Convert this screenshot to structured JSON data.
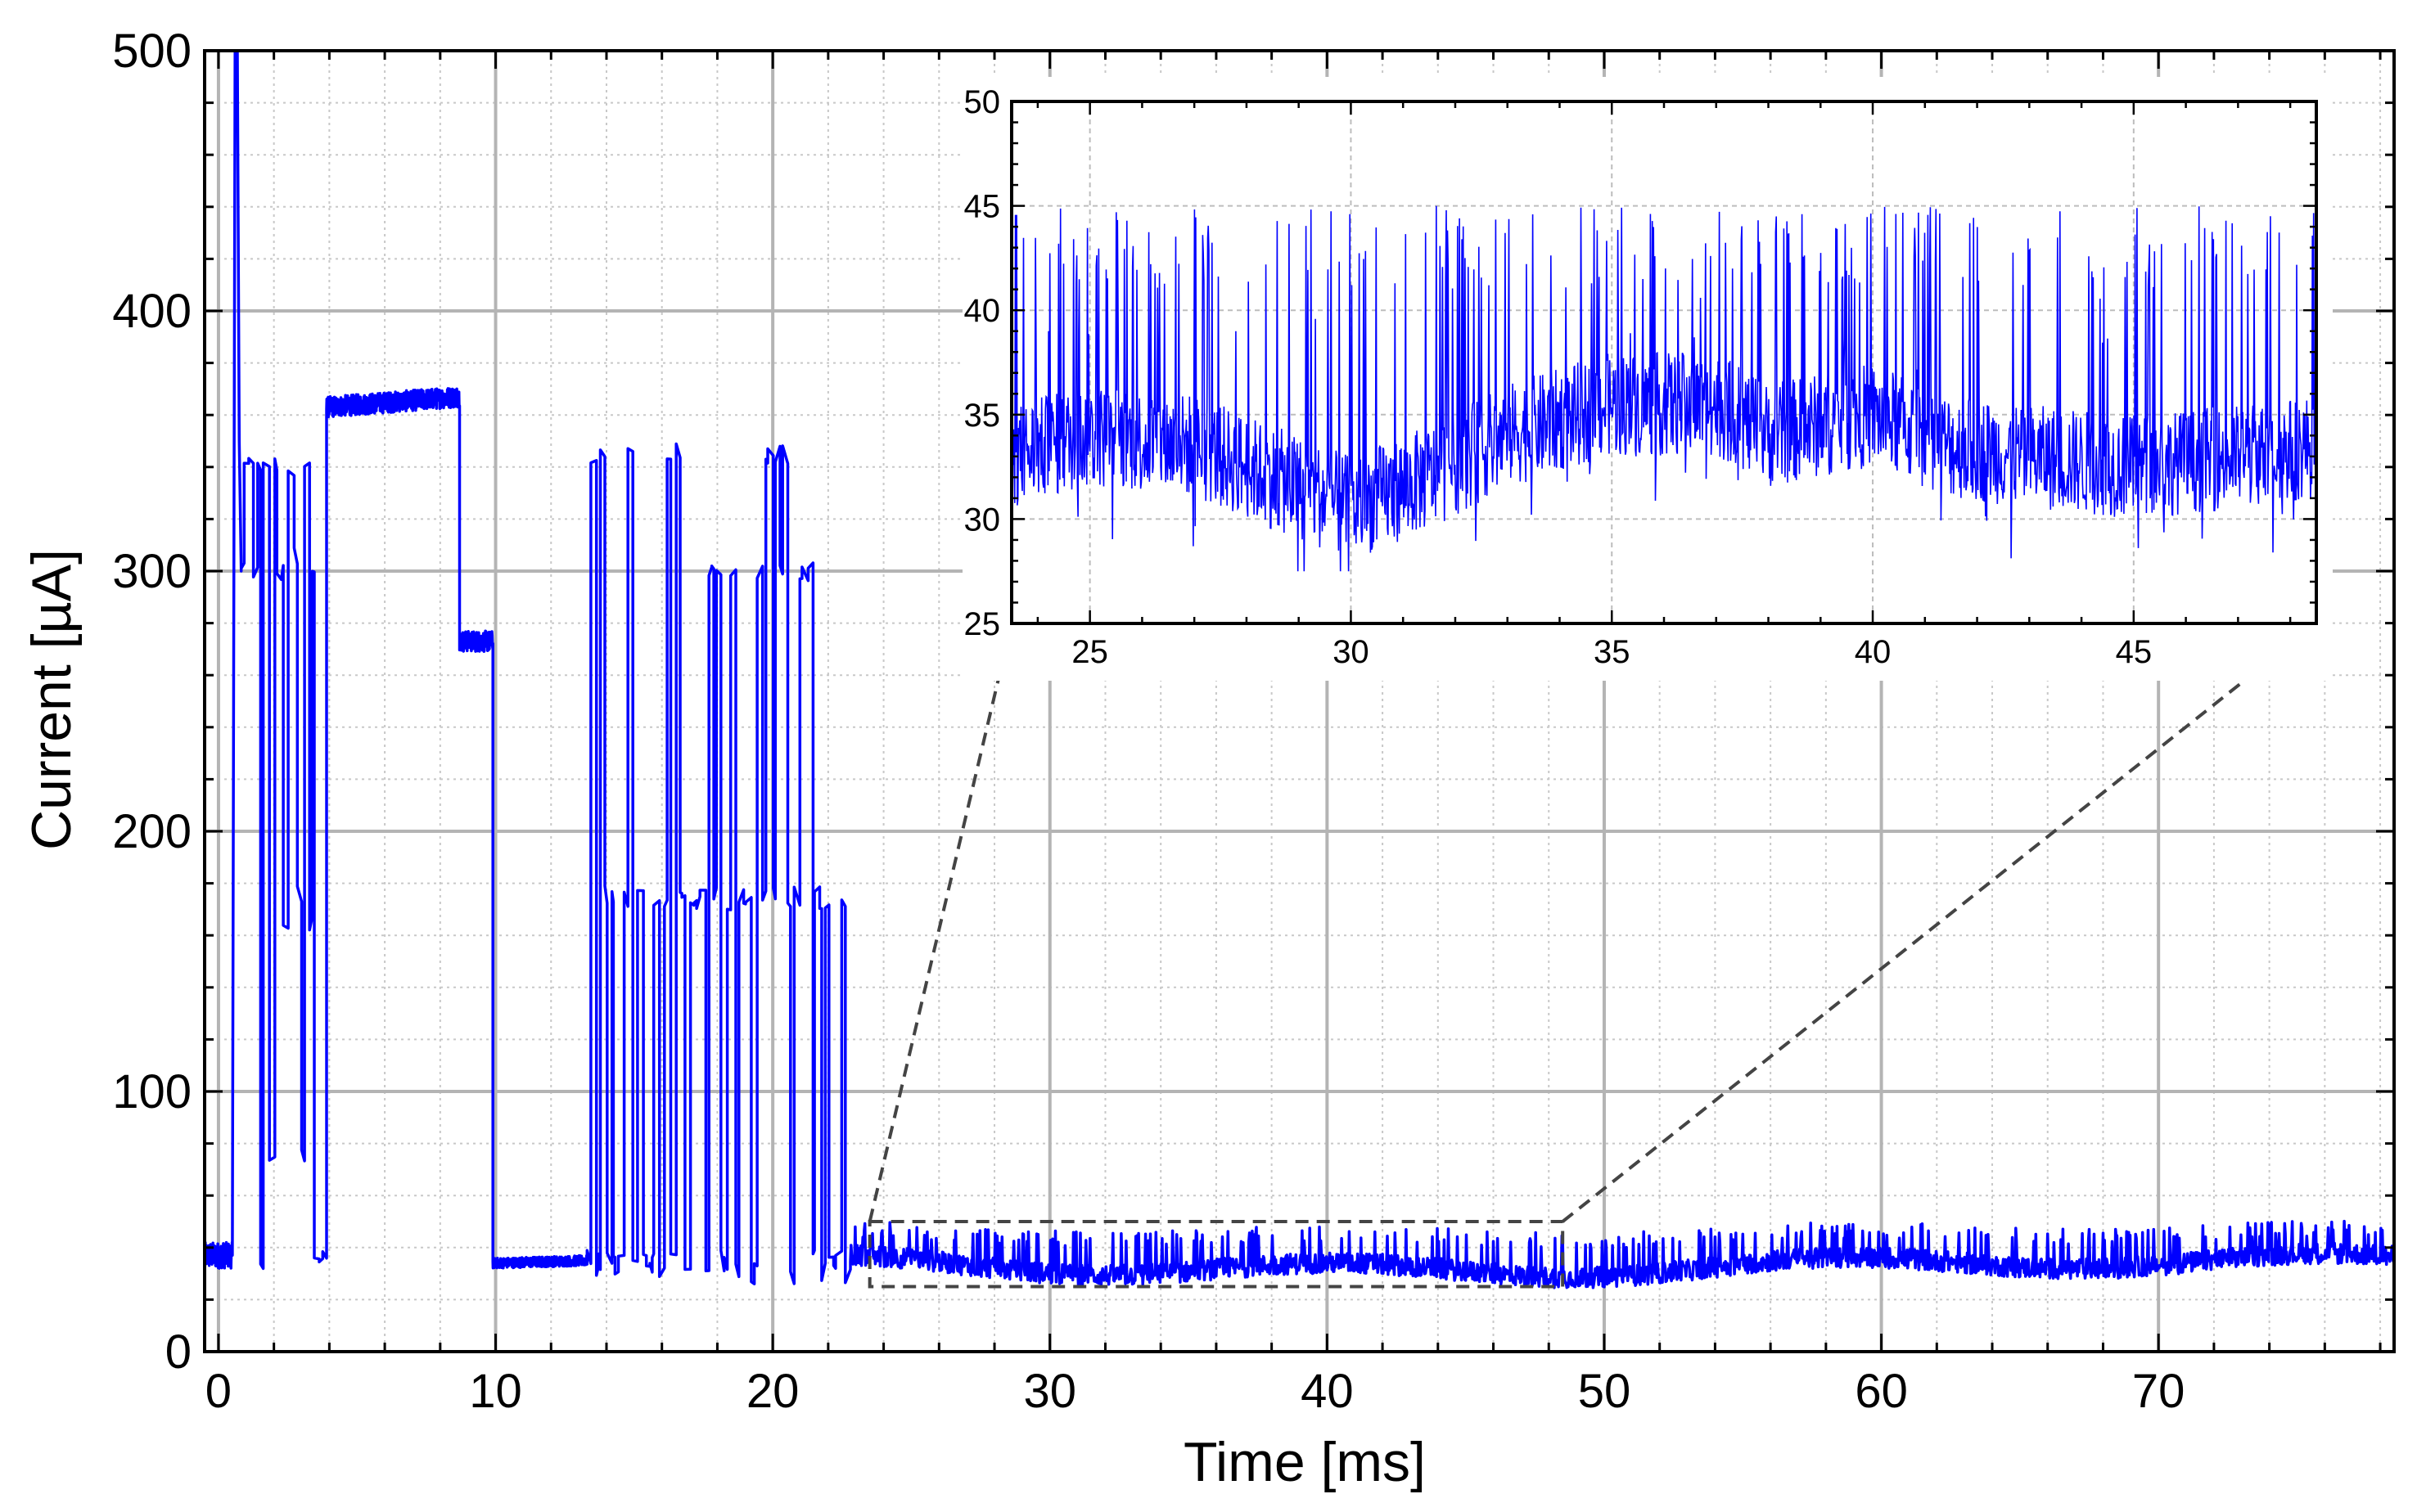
{
  "chart_data": [
    {
      "id": "main",
      "type": "line",
      "xlabel": "Time [ms]",
      "ylabel": "Current [µA]",
      "xlim": [
        -0.5,
        78.5
      ],
      "ylim": [
        0,
        500
      ],
      "xticks": [
        0,
        10,
        20,
        30,
        40,
        50,
        60,
        70
      ],
      "yticks": [
        0,
        100,
        200,
        300,
        400,
        500
      ],
      "xtick_labels": [
        "0",
        "10",
        "20",
        "30",
        "40",
        "50",
        "60",
        "70"
      ],
      "ytick_labels": [
        "0",
        "100",
        "200",
        "300",
        "400",
        "500"
      ],
      "grid": true,
      "line_color": "#0000ff",
      "series": [
        {
          "segments": [
            {
              "x": [
                -0.5,
                0.5
              ],
              "y": [
                37,
                37
              ],
              "type": "noise",
              "amp": 5
            },
            {
              "x": [
                0.5,
                0.55,
                0.6,
                0.68,
                0.75,
                0.82
              ],
              "y": [
                37,
                280,
                500,
                500,
                350,
                300
              ],
              "type": "trace"
            },
            {
              "x": [
                0.82,
                3.9
              ],
              "levels": [
                300,
                175,
                35,
                340,
                165,
                75,
                305
              ],
              "type": "switching"
            },
            {
              "x": [
                3.9,
                8.7
              ],
              "y": [
                363,
                367
              ],
              "type": "noise",
              "amp": 4
            },
            {
              "x": [
                8.7,
                9.9
              ],
              "y": [
                273,
                273
              ],
              "type": "noise",
              "amp": 4
            },
            {
              "x": [
                9.9,
                13.3
              ],
              "y": [
                34,
                35
              ],
              "type": "noise",
              "amp": 2
            },
            {
              "x": [
                13.3,
                22.8
              ],
              "levels": [
                345,
                300,
                175,
                172,
                35,
                30
              ],
              "type": "switching"
            },
            {
              "x": [
                22.8,
                78.5
              ],
              "y": [
                35,
                35
              ],
              "type": "spiky",
              "base": 33,
              "spike": 45
            }
          ]
        }
      ],
      "zoom_box": {
        "x": [
          23.5,
          48.5
        ],
        "y": [
          25,
          50
        ],
        "style": "dashed",
        "color": "#444444"
      }
    },
    {
      "id": "inset",
      "type": "line",
      "xlim": [
        23.5,
        48.5
      ],
      "ylim": [
        25,
        50
      ],
      "xticks": [
        25,
        30,
        35,
        40,
        45
      ],
      "yticks": [
        25,
        30,
        35,
        40,
        45,
        50
      ],
      "xtick_labels": [
        "25",
        "30",
        "35",
        "40",
        "45"
      ],
      "ytick_labels": [
        "25",
        "30",
        "35",
        "40",
        "45",
        "50"
      ],
      "grid": true,
      "line_color": "#0000ff",
      "series": [
        {
          "type": "spiky",
          "baseline_points": {
            "x": [
              23.5,
              25,
              27,
              28.5,
              30,
              31.5,
              33,
              35,
              37,
              38,
              40,
              41.5,
              43,
              45,
              47,
              48.5
            ],
            "y": [
              33,
              34,
              33.5,
              32,
              30.5,
              32,
              34,
              35.5,
              35.5,
              34,
              35,
              33.5,
              33,
              32.5,
              33,
              33.5
            ]
          },
          "spike_peak": 45,
          "max_peak": 48,
          "min_dip": 27.5
        }
      ]
    }
  ]
}
